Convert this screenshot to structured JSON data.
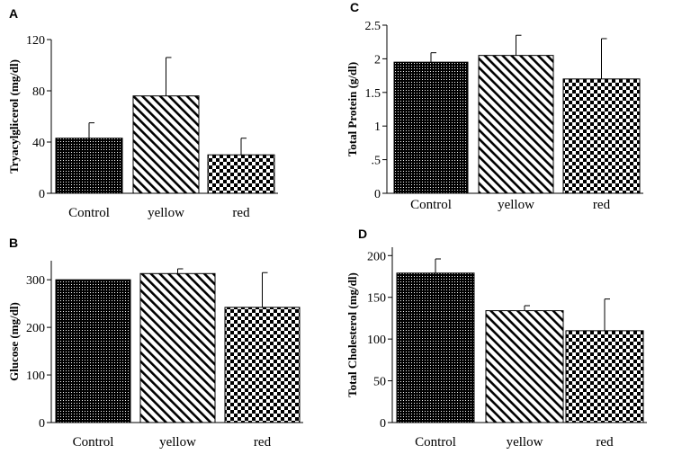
{
  "chart_data": [
    {
      "panel": "A",
      "type": "bar",
      "categories": [
        "Control",
        "yellow",
        "red"
      ],
      "values": [
        43,
        76,
        30
      ],
      "errors": [
        12,
        30,
        13
      ],
      "ylabel": "Tryacylglicerol (mg/dl)",
      "ylim": [
        0,
        120
      ],
      "yticks": [
        0,
        40,
        80,
        120
      ],
      "ytick_labels": [
        "0",
        "40",
        "80",
        "120"
      ],
      "patterns": [
        "dots",
        "diagonal",
        "checker"
      ],
      "grid": false
    },
    {
      "panel": "C",
      "type": "bar",
      "categories": [
        "Control",
        "yellow",
        "red"
      ],
      "values": [
        1.95,
        2.05,
        1.7
      ],
      "errors": [
        0.14,
        0.3,
        0.6
      ],
      "ylabel": "Total Protein (g/dl)",
      "ylim": [
        0,
        2.5
      ],
      "yticks": [
        0,
        0.5,
        1,
        1.5,
        2,
        2.5
      ],
      "ytick_labels": [
        "0",
        ".5",
        "1",
        "1.5",
        "2",
        "2.5"
      ],
      "patterns": [
        "dots",
        "diagonal",
        "checker"
      ],
      "grid": false
    },
    {
      "panel": "B",
      "type": "bar",
      "categories": [
        "Control",
        "yellow",
        "red"
      ],
      "values": [
        300,
        313,
        242
      ],
      "errors": [
        0,
        10,
        73
      ],
      "ylabel": "Glucose (mg/dl)",
      "ylim": [
        0,
        340
      ],
      "yticks": [
        0,
        100,
        200,
        300
      ],
      "ytick_labels": [
        "0",
        "100",
        "200",
        "300"
      ],
      "patterns": [
        "dots",
        "diagonal",
        "checker"
      ],
      "grid": false
    },
    {
      "panel": "D",
      "type": "bar",
      "categories": [
        "Control",
        "yellow",
        "red"
      ],
      "values": [
        179,
        134,
        110
      ],
      "errors": [
        17,
        6,
        38
      ],
      "ylabel": "Total Cholesterol (mg/dl)",
      "ylim": [
        0,
        210
      ],
      "yticks": [
        0,
        50,
        100,
        150,
        200
      ],
      "ytick_labels": [
        "0",
        "50",
        "100",
        "150",
        "200"
      ],
      "patterns": [
        "dots",
        "diagonal",
        "checker"
      ],
      "grid": false
    }
  ]
}
